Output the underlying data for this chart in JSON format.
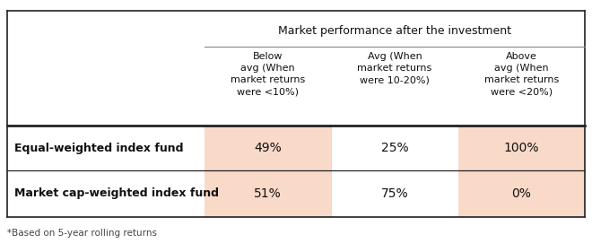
{
  "title": "Market performance after the investment",
  "col_headers": [
    "Below\navg (When\nmarket returns\nwere <10%)",
    "Avg (When\nmarket returns\nwere 10-20%)",
    "Above\navg (When\nmarket returns\nwere <20%)"
  ],
  "row_labels": [
    "Equal-weighted index fund",
    "Market cap-weighted index fund"
  ],
  "data": [
    [
      "49%",
      "25%",
      "100%"
    ],
    [
      "51%",
      "75%",
      "0%"
    ]
  ],
  "footnote": "*Based on 5-year rolling returns",
  "highlight_color": "#f9d9c8",
  "bg_color": "#ffffff",
  "border_color": "#222222",
  "thick_line_color": "#222222",
  "thin_line_color": "#888888"
}
